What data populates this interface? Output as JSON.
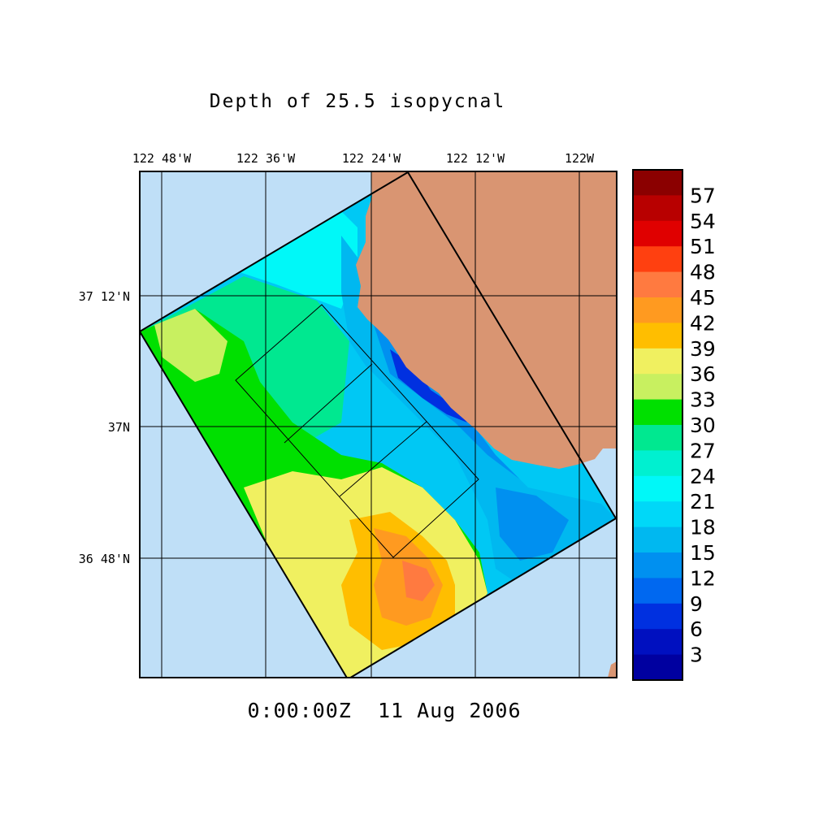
{
  "title": "Depth of 25.5 isopycnal",
  "timestamp": "0:00:00Z  11 Aug 2006",
  "longitude_labels": [
    "122 48'W",
    "122 36'W",
    "122 24'W",
    "122 12'W",
    "122W"
  ],
  "latitude_labels": [
    "37 12'N",
    "37N",
    "36 48'N"
  ],
  "colorbar": {
    "labels": [
      "57",
      "54",
      "51",
      "48",
      "45",
      "42",
      "39",
      "36",
      "33",
      "30",
      "27",
      "24",
      "21",
      "18",
      "15",
      "12",
      "9",
      "6",
      "3"
    ],
    "colors": [
      "#8b0000",
      "#b80000",
      "#e00000",
      "#ff4010",
      "#ff7a40",
      "#ff9a20",
      "#ffbe00",
      "#f0f060",
      "#c8f060",
      "#00e000",
      "#00e890",
      "#00f0d0",
      "#00f8f8",
      "#00d8f8",
      "#00b8f0",
      "#0090f0",
      "#0068f0",
      "#0030e0",
      "#0010c0",
      "#0000a0"
    ]
  },
  "colors": {
    "ocean": "#bfdff7",
    "land": "#d99572",
    "grid": "#000000"
  }
}
